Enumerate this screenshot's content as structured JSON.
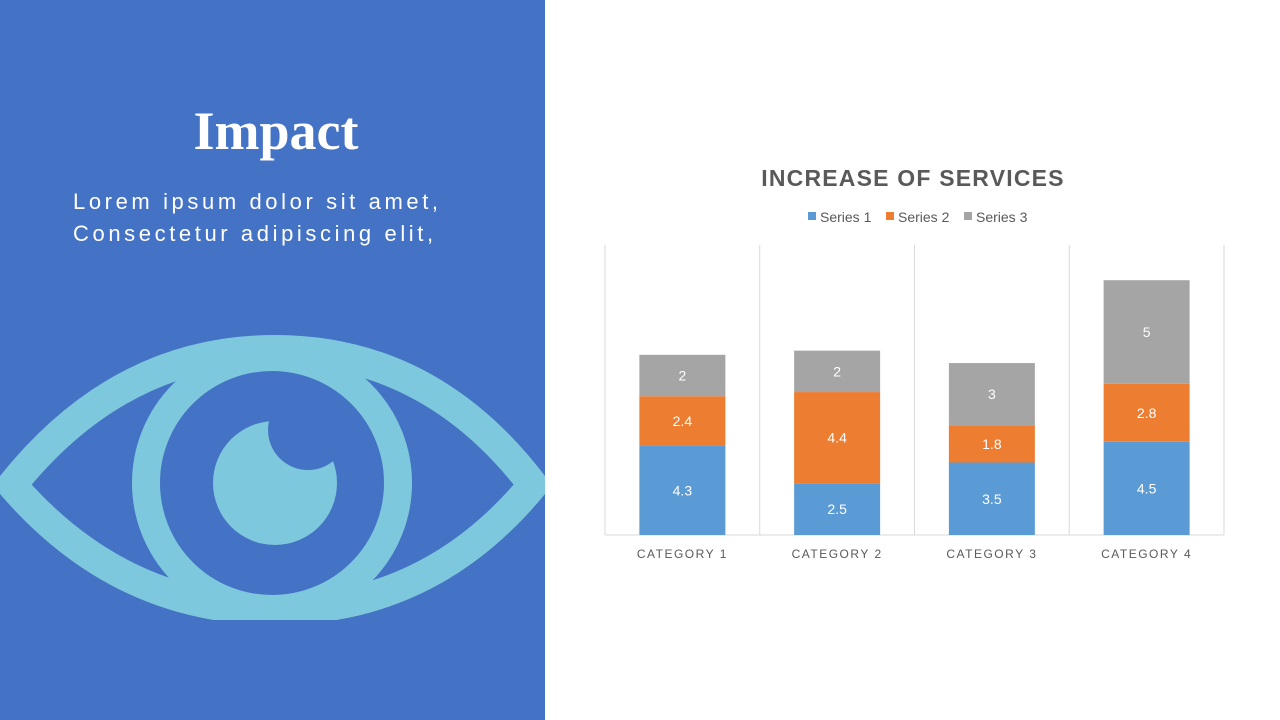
{
  "slide": {
    "title": "Impact",
    "subtitle_lines": [
      "Lorem ipsum dolor sit amet,",
      "Consectetur adipiscing elit,"
    ],
    "icon": "eye-icon",
    "colors": {
      "panel": "#4472c4",
      "icon": "#7ec8dd"
    }
  },
  "chart_data": {
    "type": "bar",
    "stacked": true,
    "title": "INCREASE OF SERVICES",
    "categories": [
      "CATEGORY 1",
      "CATEGORY 2",
      "CATEGORY 3",
      "CATEGORY 4"
    ],
    "series": [
      {
        "name": "Series 1",
        "values": [
          4.3,
          2.5,
          3.5,
          4.5
        ],
        "color": "#5b9bd5"
      },
      {
        "name": "Series 2",
        "values": [
          2.4,
          4.4,
          1.8,
          2.8
        ],
        "color": "#ed7d31"
      },
      {
        "name": "Series 3",
        "values": [
          2,
          2,
          3,
          5
        ],
        "color": "#a5a5a5"
      }
    ],
    "ylim": [
      0,
      14
    ],
    "data_labels": true,
    "legend": "top",
    "grid": "vertical category separators"
  }
}
